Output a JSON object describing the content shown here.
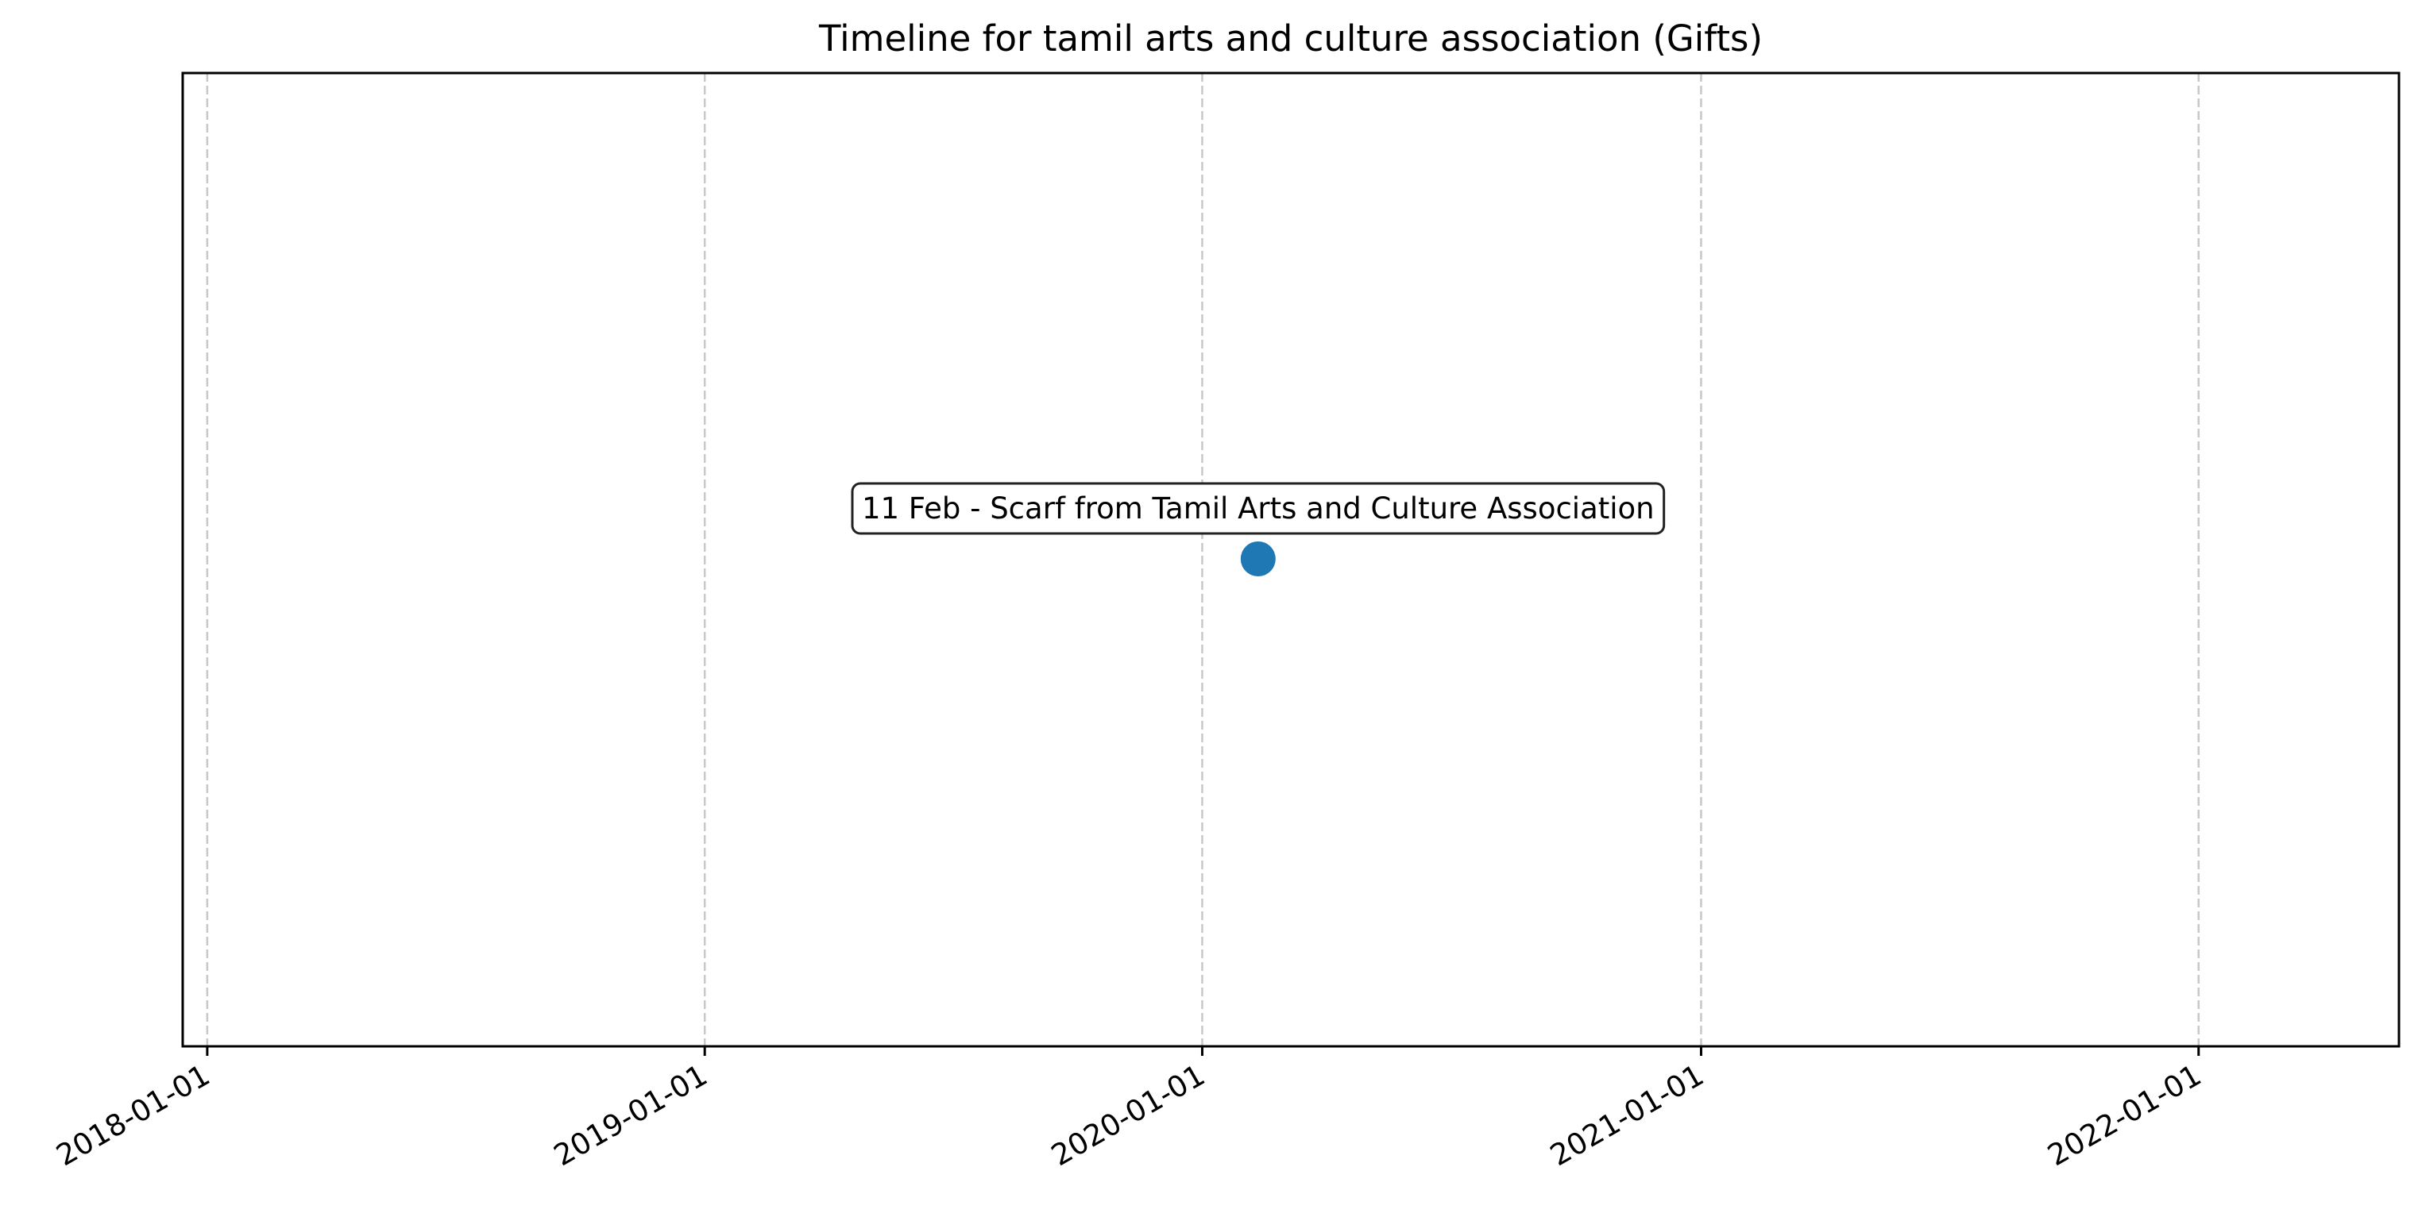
{
  "chart_data": {
    "type": "scatter",
    "title": "Timeline for tamil arts and culture association (Gifts)",
    "xlabel": "",
    "ylabel": "",
    "x_axis_type": "date",
    "xlim": [
      "2017-12-14",
      "2022-05-28"
    ],
    "x_ticks": [
      "2018-01-01",
      "2019-01-01",
      "2020-01-01",
      "2021-01-01",
      "2022-01-01"
    ],
    "y_ticks_visible": false,
    "grid": "vertical dashed at x ticks",
    "legend": "none",
    "series": [
      {
        "color": "#1f77b4",
        "points": [
          {
            "x": "2020-02-11",
            "label": "11 Feb - Scarf from Tamil Arts and Culture Association"
          }
        ]
      }
    ]
  }
}
